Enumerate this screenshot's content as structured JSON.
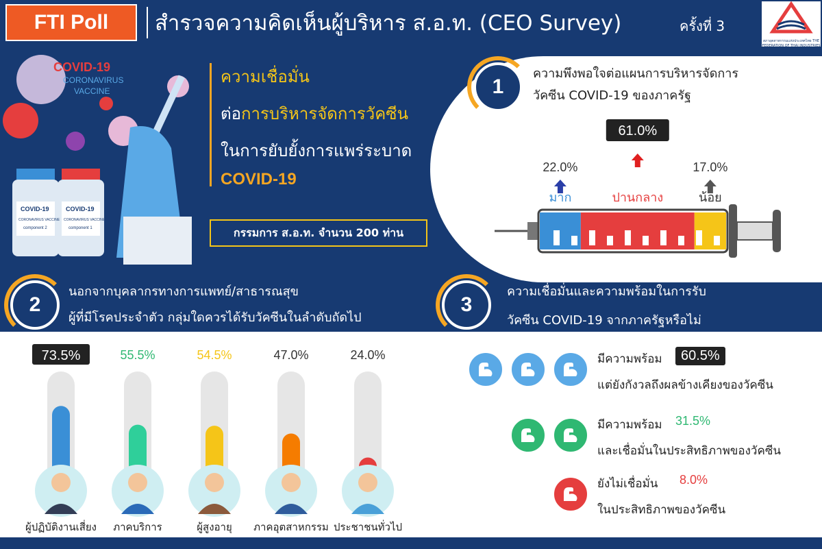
{
  "header": {
    "badge": "FTI Poll",
    "title": "สำรวจความคิดเห็นผู้บริหาร ส.อ.ท. (CEO Survey)",
    "round": "ครั้งที่ 3",
    "logo_caption": "สภาอุตสาหกรรมแห่งประเทศไทย THE FEDERATION OF THAI INDUSTRIES"
  },
  "hero": {
    "art_text_1": "COVID-19",
    "art_text_2": "CORONAVIRUS",
    "art_text_3": "VACCINE",
    "line1": "ความเชื่อมั่น",
    "line2_prefix": "ต่อ",
    "line2_highlight": "การบริหารจัดการวัคซีน",
    "line3": "ในการยับยั้งการแพร่ระบาด",
    "line4": "COVID-19",
    "sample": "กรรมการ ส.อ.ท. จำนวน 200 ท่าน",
    "vial_label": "COVID-19",
    "vial_sub_1": "CORONAVIRUS VACCINE",
    "vial_sub_2_left": "component 2",
    "vial_sub_2_right": "component 1"
  },
  "colors": {
    "navy": "#173a72",
    "orange": "#f5a623",
    "yellow": "#f5c518",
    "blue": "#3a8fd6",
    "green": "#2fb872",
    "red": "#e53e3e",
    "light_blue": "#5aa9e6"
  },
  "section1": {
    "number": "1",
    "title_1": "ความพึงพอใจต่อแผนการบริหารจัดการ",
    "title_2": "วัคซีน COVID-19 ของภาครัฐ"
  },
  "section2": {
    "number": "2",
    "title_1": "นอกจากบุคลากรทางการแพทย์/สาธารณสุข",
    "title_2": "ผู้ที่มีโรคประจำตัว กลุ่มใดควรได้รับวัคซีนในลำดับถัดไป"
  },
  "section3": {
    "number": "3",
    "title_1": "ความเชื่อมั่นและความพร้อมในการรับ",
    "title_2": "วัคซีน COVID-19 จากภาครัฐหรือไม่",
    "items": [
      {
        "label_1": "มีความพร้อม",
        "value": "60.5%",
        "label_2": "แต่ยังกังวลถึงผลข้างเคียงของวัคซีน",
        "icons": 3,
        "color": "#5aa9e6",
        "value_color": "#ffffff"
      },
      {
        "label_1": "มีความพร้อม",
        "value": "31.5%",
        "label_2": "และเชื่อมั่นในประสิทธิภาพของวัคซีน",
        "icons": 2,
        "color": "#2fb872",
        "value_color": "#2fb872"
      },
      {
        "label_1": "ยังไม่เชื่อมั่น",
        "value": "8.0%",
        "label_2": "ในประสิทธิภาพของวัคซีน",
        "icons": 1,
        "color": "#e53e3e",
        "value_color": "#e53e3e"
      }
    ]
  },
  "chart_data": [
    {
      "type": "bar",
      "categories": [
        "มาก",
        "ปานกลาง",
        "น้อย"
      ],
      "values": [
        22.0,
        61.0,
        17.0
      ],
      "value_labels": [
        "22.0%",
        "61.0%",
        "17.0%"
      ],
      "colors": [
        "#3a8fd6",
        "#e53e3e",
        "#f5c518"
      ],
      "title": "ความพึงพอใจต่อแผนการบริหารจัดการวัคซีน COVID-19 ของภาครัฐ",
      "ylim": [
        0,
        100
      ]
    },
    {
      "type": "bar",
      "categories": [
        "ผู้ปฏิบัติงานเสี่ยง",
        "ภาคบริการ",
        "ผู้สูงอายุ",
        "ภาคอุตสาหกรรม",
        "ประชาชนทั่วไป"
      ],
      "values": [
        73.5,
        55.5,
        54.5,
        47.0,
        24.0
      ],
      "value_labels": [
        "73.5%",
        "55.5%",
        "54.5%",
        "47.0%",
        "24.0%"
      ],
      "colors": [
        "#3a8fd6",
        "#2fcf9a",
        "#f5c518",
        "#f57c00",
        "#e53e3e"
      ],
      "title": "นอกจากบุคลากรทางการแพทย์/สาธารณสุข ผู้ที่มีโรคประจำตัว กลุ่มใดควรได้รับวัคซีนในลำดับถัดไป",
      "ylim": [
        0,
        100
      ]
    },
    {
      "type": "bar",
      "categories": [
        "มีความพร้อม แต่ยังกังวลถึงผลข้างเคียงของวัคซีน",
        "มีความพร้อม และเชื่อมั่นในประสิทธิภาพของวัคซีน",
        "ยังไม่เชื่อมั่น ในประสิทธิภาพของวัคซีน"
      ],
      "values": [
        60.5,
        31.5,
        8.0
      ],
      "title": "ความเชื่อมั่นและความพร้อมในการรับวัคซีน COVID-19 จากภาครัฐหรือไม่"
    }
  ]
}
